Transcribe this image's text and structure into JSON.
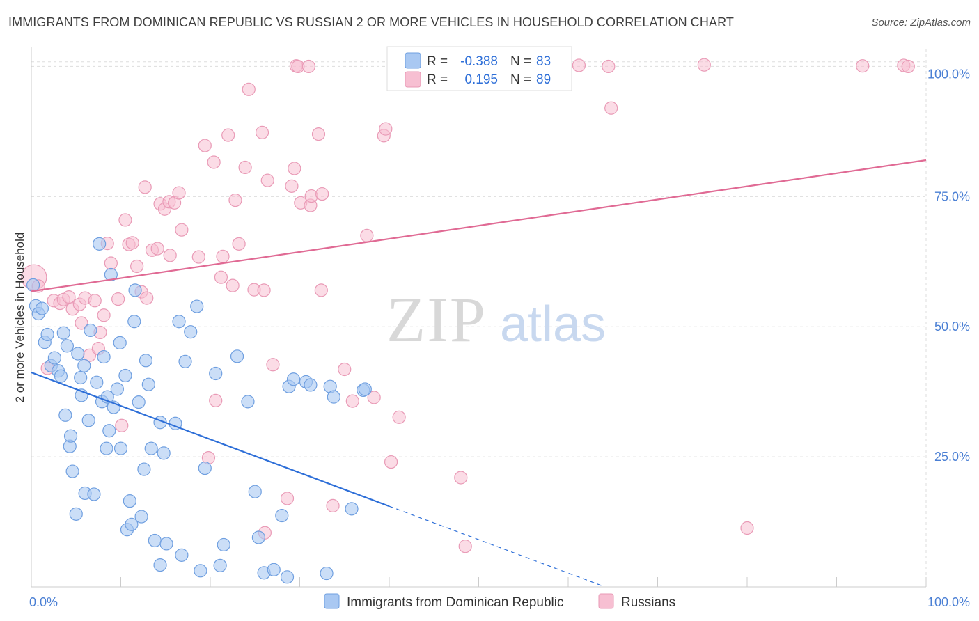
{
  "title": "IMMIGRANTS FROM DOMINICAN REPUBLIC VS RUSSIAN 2 OR MORE VEHICLES IN HOUSEHOLD CORRELATION CHART",
  "source": "Source: ZipAtlas.com",
  "watermark": {
    "zip": "ZIP",
    "atlas": "atlas"
  },
  "colors": {
    "blue_fill": "#a9c8f2",
    "blue_stroke": "#6f9fe0",
    "blue_line": "#2e6fd8",
    "pink_fill": "#f7bfd2",
    "pink_stroke": "#e99ab6",
    "pink_line": "#e06a94",
    "grid": "#dddddd",
    "tick_text": "#4a7fd4"
  },
  "legend": {
    "rows": [
      {
        "r_label": "R =",
        "r_value": "-0.388",
        "n_label": "N =",
        "n_value": "83"
      },
      {
        "r_label": "R =",
        "r_value": "0.195",
        "n_label": "N =",
        "n_value": "89"
      }
    ]
  },
  "chart_data": {
    "type": "scatter",
    "title": "IMMIGRANTS FROM DOMINICAN REPUBLIC VS RUSSIAN 2 OR MORE VEHICLES IN HOUSEHOLD CORRELATION CHART",
    "xlabel": "",
    "ylabel": "2 or more Vehicles in Household",
    "xlim": [
      0,
      100
    ],
    "ylim": [
      0,
      103
    ],
    "x_tick_labels": [
      "0.0%",
      "100.0%"
    ],
    "y_ticks": [
      25,
      50,
      75,
      100
    ],
    "y_tick_labels": [
      "25.0%",
      "50.0%",
      "75.0%",
      "100.0%"
    ],
    "grid": true,
    "legend_position": "top-center",
    "series": [
      {
        "name": "Immigrants from Dominican Republic",
        "color": "#a9c8f2",
        "trend": {
          "x0": 0,
          "y0": 41.2,
          "x1": 40,
          "y1": 15.5,
          "dashed_to_x": 64
        },
        "points": [
          [
            0.2,
            58
          ],
          [
            0.5,
            54
          ],
          [
            0.8,
            52.5
          ],
          [
            1.2,
            53.5
          ],
          [
            1.5,
            47
          ],
          [
            1.8,
            48.5
          ],
          [
            2.2,
            42.5
          ],
          [
            2.6,
            44
          ],
          [
            3.0,
            41.5
          ],
          [
            3.3,
            40.5
          ],
          [
            3.6,
            48.8
          ],
          [
            3.8,
            33
          ],
          [
            4.0,
            46.3
          ],
          [
            4.3,
            27
          ],
          [
            4.4,
            29
          ],
          [
            4.6,
            22.2
          ],
          [
            5.0,
            14
          ],
          [
            5.2,
            44.8
          ],
          [
            5.5,
            40.2
          ],
          [
            5.6,
            36.8
          ],
          [
            5.9,
            42.5
          ],
          [
            6.0,
            18
          ],
          [
            6.4,
            32
          ],
          [
            6.6,
            49.3
          ],
          [
            7.0,
            17.8
          ],
          [
            7.3,
            39.3
          ],
          [
            7.6,
            65.9
          ],
          [
            7.9,
            35.6
          ],
          [
            8.1,
            44.2
          ],
          [
            8.4,
            26.6
          ],
          [
            8.5,
            36.5
          ],
          [
            8.7,
            30
          ],
          [
            8.9,
            60
          ],
          [
            9.2,
            34.5
          ],
          [
            9.6,
            38
          ],
          [
            9.9,
            46.9
          ],
          [
            10.0,
            26.6
          ],
          [
            10.5,
            40.6
          ],
          [
            10.7,
            11
          ],
          [
            11.0,
            16.5
          ],
          [
            11.2,
            12
          ],
          [
            11.5,
            51
          ],
          [
            11.6,
            57
          ],
          [
            12.0,
            35.5
          ],
          [
            12.3,
            13.5
          ],
          [
            12.6,
            22.6
          ],
          [
            12.8,
            43.5
          ],
          [
            13.1,
            38.9
          ],
          [
            13.4,
            26.6
          ],
          [
            13.8,
            8.9
          ],
          [
            14.4,
            31.6
          ],
          [
            14.4,
            4.2
          ],
          [
            14.8,
            25.7
          ],
          [
            15.1,
            8.3
          ],
          [
            16.1,
            31.4
          ],
          [
            16.5,
            51
          ],
          [
            16.8,
            6.1
          ],
          [
            17.2,
            43.3
          ],
          [
            17.8,
            49
          ],
          [
            18.5,
            53.9
          ],
          [
            18.9,
            3.1
          ],
          [
            19.4,
            22.8
          ],
          [
            20.6,
            41
          ],
          [
            21.1,
            4.1
          ],
          [
            21.5,
            8.1
          ],
          [
            23.0,
            44.3
          ],
          [
            24.2,
            35.6
          ],
          [
            25.0,
            18.3
          ],
          [
            25.4,
            9.5
          ],
          [
            26.0,
            2.7
          ],
          [
            27.1,
            3.3
          ],
          [
            28.0,
            13.7
          ],
          [
            28.6,
            1.9
          ],
          [
            28.8,
            38.5
          ],
          [
            29.3,
            39.9
          ],
          [
            30.7,
            39.4
          ],
          [
            31.2,
            38.8
          ],
          [
            33.0,
            2.6
          ],
          [
            33.4,
            38.5
          ],
          [
            33.8,
            36.5
          ],
          [
            35.8,
            15
          ],
          [
            37.1,
            37.8
          ],
          [
            37.3,
            38
          ]
        ]
      },
      {
        "name": "Russians",
        "color": "#f7bfd2",
        "trend": {
          "x0": 0,
          "y0": 56.8,
          "x1": 100,
          "y1": 82
        },
        "points": [
          [
            0.3,
            59.5
          ],
          [
            0.8,
            57.8
          ],
          [
            1.8,
            42
          ],
          [
            2.5,
            55
          ],
          [
            3.2,
            54.5
          ],
          [
            3.6,
            55.2
          ],
          [
            4.2,
            55.7
          ],
          [
            4.6,
            53.4
          ],
          [
            5.4,
            54.3
          ],
          [
            5.6,
            50.7
          ],
          [
            6.0,
            55.5
          ],
          [
            6.5,
            44.5
          ],
          [
            7.1,
            55
          ],
          [
            7.5,
            45.8
          ],
          [
            7.7,
            48.9
          ],
          [
            8.1,
            52.2
          ],
          [
            8.5,
            66
          ],
          [
            8.9,
            62.2
          ],
          [
            9.7,
            55.3
          ],
          [
            10.1,
            31
          ],
          [
            10.5,
            70.5
          ],
          [
            10.9,
            65.8
          ],
          [
            11.3,
            66.1
          ],
          [
            11.8,
            61.6
          ],
          [
            12.3,
            56.7
          ],
          [
            12.7,
            76.8
          ],
          [
            12.9,
            55.5
          ],
          [
            13.5,
            64.7
          ],
          [
            14.1,
            65
          ],
          [
            14.4,
            73.6
          ],
          [
            14.9,
            72.6
          ],
          [
            15.4,
            74
          ],
          [
            15.5,
            63.7
          ],
          [
            16.0,
            73.8
          ],
          [
            16.5,
            75.7
          ],
          [
            16.8,
            68.6
          ],
          [
            18.7,
            63.4
          ],
          [
            19.4,
            84.8
          ],
          [
            19.8,
            24.8
          ],
          [
            20.4,
            81.6
          ],
          [
            20.6,
            35.8
          ],
          [
            21.2,
            59.5
          ],
          [
            21.4,
            63.5
          ],
          [
            22.0,
            86.8
          ],
          [
            22.5,
            57.9
          ],
          [
            22.8,
            74.3
          ],
          [
            23.2,
            65.9
          ],
          [
            23.9,
            80.6
          ],
          [
            24.3,
            95.6
          ],
          [
            24.9,
            57.1
          ],
          [
            25.8,
            87.3
          ],
          [
            26.0,
            57
          ],
          [
            26.1,
            10.4
          ],
          [
            26.4,
            78.1
          ],
          [
            27.0,
            42.7
          ],
          [
            28.6,
            17
          ],
          [
            29.1,
            77
          ],
          [
            29.4,
            80.4
          ],
          [
            29.6,
            100.1
          ],
          [
            29.8,
            100
          ],
          [
            30.1,
            73.8
          ],
          [
            31.0,
            100
          ],
          [
            31.2,
            73.3
          ],
          [
            31.3,
            75.1
          ],
          [
            32.1,
            87
          ],
          [
            32.4,
            57
          ],
          [
            32.5,
            75.5
          ],
          [
            33.7,
            15.6
          ],
          [
            35.0,
            41.8
          ],
          [
            35.9,
            35.7
          ],
          [
            37.5,
            67.5
          ],
          [
            38.3,
            36.4
          ],
          [
            39.4,
            86.7
          ],
          [
            39.6,
            88
          ],
          [
            40.2,
            24
          ],
          [
            41.1,
            32.6
          ],
          [
            44.8,
            100
          ],
          [
            46.1,
            100.2
          ],
          [
            47.4,
            100
          ],
          [
            48.0,
            21
          ],
          [
            48.5,
            7.8
          ],
          [
            61.2,
            100.2
          ],
          [
            64.5,
            100
          ],
          [
            64.8,
            92
          ],
          [
            75.2,
            100.3
          ],
          [
            80.0,
            11.3
          ],
          [
            92.9,
            100.1
          ],
          [
            97.5,
            100.2
          ],
          [
            98.0,
            100
          ]
        ]
      }
    ]
  }
}
